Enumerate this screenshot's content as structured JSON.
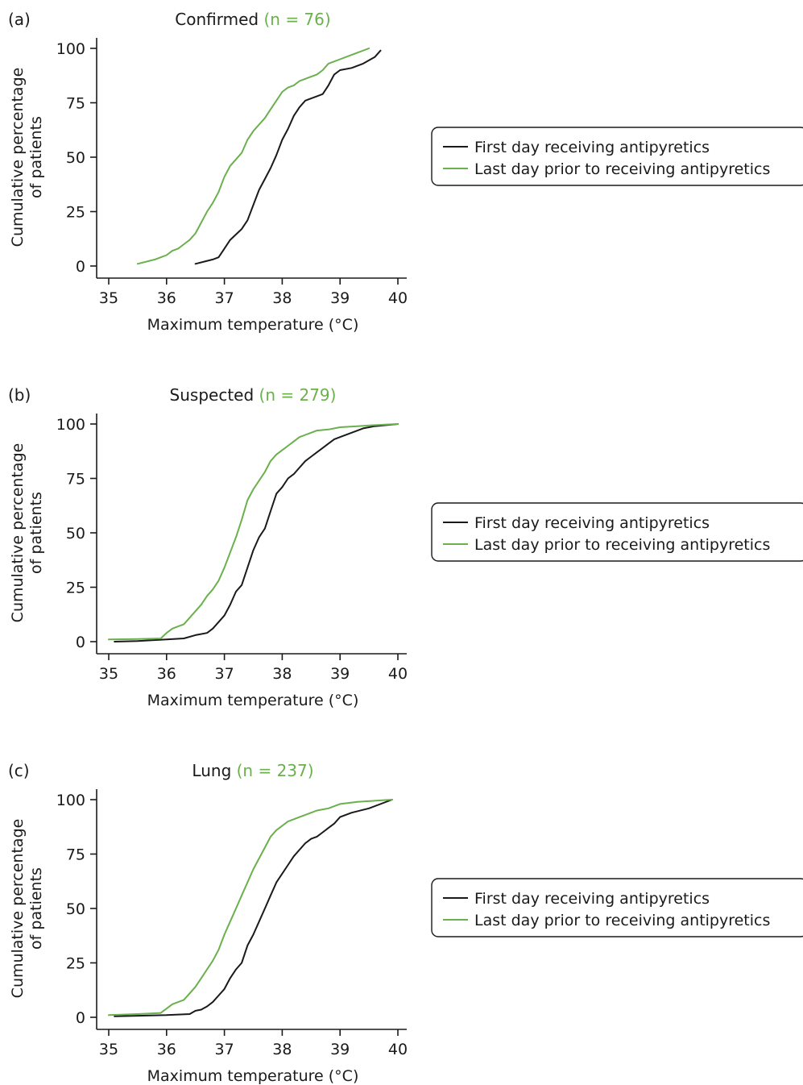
{
  "colors": {
    "first_day": "#1a1a1a",
    "last_day": "#6ab04c",
    "n_highlight": "#6ab04c"
  },
  "legend_labels": {
    "first_day": "First day receiving antipyretics",
    "last_day": "Last day prior to receiving antipyretics"
  },
  "chart_data": [
    {
      "type": "line",
      "panel_label": "(a)",
      "title": "Confirmed",
      "title_n": "(n = 76)",
      "xlabel": "Maximum temperature (°C)",
      "ylabel": "Cumulative percentage of patients",
      "ylabel_lines": [
        "Cumulative percentage",
        "of patients"
      ],
      "xlim": [
        35,
        40
      ],
      "ylim": [
        0,
        100
      ],
      "xticks": [
        35,
        36,
        37,
        38,
        39,
        40
      ],
      "yticks": [
        0,
        25,
        50,
        75,
        100
      ],
      "legend_position": "right",
      "grid": false,
      "series": [
        {
          "name": "First day receiving antipyretics",
          "color_key": "first_day",
          "x": [
            36.5,
            36.8,
            36.9,
            37.0,
            37.1,
            37.3,
            37.4,
            37.5,
            37.6,
            37.7,
            37.8,
            37.9,
            38.0,
            38.1,
            38.2,
            38.3,
            38.4,
            38.6,
            38.7,
            38.8,
            38.9,
            39.0,
            39.2,
            39.4,
            39.6,
            39.7
          ],
          "y": [
            1,
            3,
            4,
            8,
            12,
            17,
            21,
            28,
            35,
            40,
            45,
            51,
            58,
            63,
            69,
            73,
            76,
            78,
            79,
            83,
            88,
            90,
            91,
            93,
            96,
            99
          ]
        },
        {
          "name": "Last day prior to receiving antipyretics",
          "color_key": "last_day",
          "x": [
            35.5,
            35.8,
            35.9,
            36.0,
            36.1,
            36.2,
            36.3,
            36.4,
            36.5,
            36.6,
            36.7,
            36.8,
            36.9,
            37.0,
            37.1,
            37.2,
            37.3,
            37.4,
            37.5,
            37.6,
            37.7,
            37.8,
            37.9,
            38.0,
            38.1,
            38.2,
            38.3,
            38.4,
            38.5,
            38.6,
            38.7,
            38.8,
            39.0,
            39.2,
            39.5
          ],
          "y": [
            1,
            3,
            4,
            5,
            7,
            8,
            10,
            12,
            15,
            20,
            25,
            29,
            34,
            41,
            46,
            49,
            52,
            58,
            62,
            65,
            68,
            72,
            76,
            80,
            82,
            83,
            85,
            86,
            87,
            88,
            90,
            93,
            95,
            97,
            100
          ]
        }
      ]
    },
    {
      "type": "line",
      "panel_label": "(b)",
      "title": "Suspected",
      "title_n": "(n = 279)",
      "xlabel": "Maximum temperature (°C)",
      "ylabel": "Cumulative percentage of patients",
      "ylabel_lines": [
        "Cumulative percentage",
        "of patients"
      ],
      "xlim": [
        35,
        40
      ],
      "ylim": [
        0,
        100
      ],
      "xticks": [
        35,
        36,
        37,
        38,
        39,
        40
      ],
      "yticks": [
        0,
        25,
        50,
        75,
        100
      ],
      "legend_position": "right",
      "grid": false,
      "series": [
        {
          "name": "First day receiving antipyretics",
          "color_key": "first_day",
          "x": [
            35.1,
            35.5,
            36.0,
            36.3,
            36.5,
            36.7,
            36.8,
            36.9,
            37.0,
            37.1,
            37.2,
            37.3,
            37.4,
            37.5,
            37.6,
            37.7,
            37.8,
            37.9,
            38.0,
            38.1,
            38.2,
            38.3,
            38.4,
            38.5,
            38.6,
            38.7,
            38.8,
            38.9,
            39.0,
            39.2,
            39.4,
            39.6,
            40.0
          ],
          "y": [
            0,
            0.3,
            1,
            1.5,
            3,
            4,
            6,
            9,
            12,
            17,
            23,
            26,
            34,
            42,
            48,
            52,
            60,
            68,
            71,
            75,
            77,
            80,
            83,
            85,
            87,
            89,
            91,
            93,
            94,
            96,
            98,
            99,
            100
          ]
        },
        {
          "name": "Last day prior to receiving antipyretics",
          "color_key": "last_day",
          "x": [
            35.0,
            35.5,
            35.9,
            36.0,
            36.1,
            36.2,
            36.3,
            36.4,
            36.5,
            36.6,
            36.7,
            36.8,
            36.9,
            37.0,
            37.1,
            37.2,
            37.3,
            37.4,
            37.5,
            37.6,
            37.7,
            37.8,
            37.9,
            38.0,
            38.1,
            38.2,
            38.3,
            38.4,
            38.5,
            38.6,
            38.8,
            39.0,
            39.3,
            39.6,
            40.0
          ],
          "y": [
            1,
            1.2,
            1.5,
            4,
            6,
            7,
            8,
            11,
            14,
            17,
            21,
            24,
            28,
            34,
            41,
            48,
            56,
            65,
            70,
            74,
            78,
            83,
            86,
            88,
            90,
            92,
            94,
            95,
            96,
            97,
            97.5,
            98.5,
            99,
            99.5,
            100
          ]
        }
      ]
    },
    {
      "type": "line",
      "panel_label": "(c)",
      "title": "Lung",
      "title_n": "(n = 237)",
      "xlabel": "Maximum temperature (°C)",
      "ylabel": "Cumulative percentage of patients",
      "ylabel_lines": [
        "Cumulative percentage",
        "of patients"
      ],
      "xlim": [
        35,
        40
      ],
      "ylim": [
        0,
        100
      ],
      "xticks": [
        35,
        36,
        37,
        38,
        39,
        40
      ],
      "yticks": [
        0,
        25,
        50,
        75,
        100
      ],
      "legend_position": "right",
      "grid": false,
      "series": [
        {
          "name": "First day receiving antipyretics",
          "color_key": "first_day",
          "x": [
            35.1,
            35.5,
            36.0,
            36.4,
            36.5,
            36.6,
            36.7,
            36.8,
            36.9,
            37.0,
            37.1,
            37.2,
            37.3,
            37.4,
            37.5,
            37.6,
            37.7,
            37.8,
            37.9,
            38.0,
            38.1,
            38.2,
            38.3,
            38.4,
            38.5,
            38.6,
            38.7,
            38.8,
            38.9,
            39.0,
            39.2,
            39.5,
            39.9
          ],
          "y": [
            0.5,
            0.7,
            1,
            1.5,
            3,
            3.5,
            5,
            7,
            10,
            13,
            18,
            22,
            25,
            33,
            38,
            44,
            50,
            56,
            62,
            66,
            70,
            74,
            77,
            80,
            82,
            83,
            85,
            87,
            89,
            92,
            94,
            96,
            100
          ]
        },
        {
          "name": "Last day prior to receiving antipyretics",
          "color_key": "last_day",
          "x": [
            35.0,
            35.5,
            35.9,
            36.0,
            36.1,
            36.2,
            36.3,
            36.4,
            36.5,
            36.6,
            36.7,
            36.8,
            36.9,
            37.0,
            37.1,
            37.2,
            37.3,
            37.4,
            37.5,
            37.6,
            37.7,
            37.8,
            37.9,
            38.0,
            38.1,
            38.2,
            38.3,
            38.4,
            38.5,
            38.6,
            38.8,
            39.0,
            39.3,
            39.6,
            39.9
          ],
          "y": [
            1,
            1.5,
            2,
            4,
            6,
            7,
            8,
            11,
            14,
            18,
            22,
            26,
            31,
            38,
            44,
            50,
            56,
            62,
            68,
            73,
            78,
            83,
            86,
            88,
            90,
            91,
            92,
            93,
            94,
            95,
            96,
            98,
            99,
            99.5,
            100
          ]
        }
      ]
    }
  ]
}
